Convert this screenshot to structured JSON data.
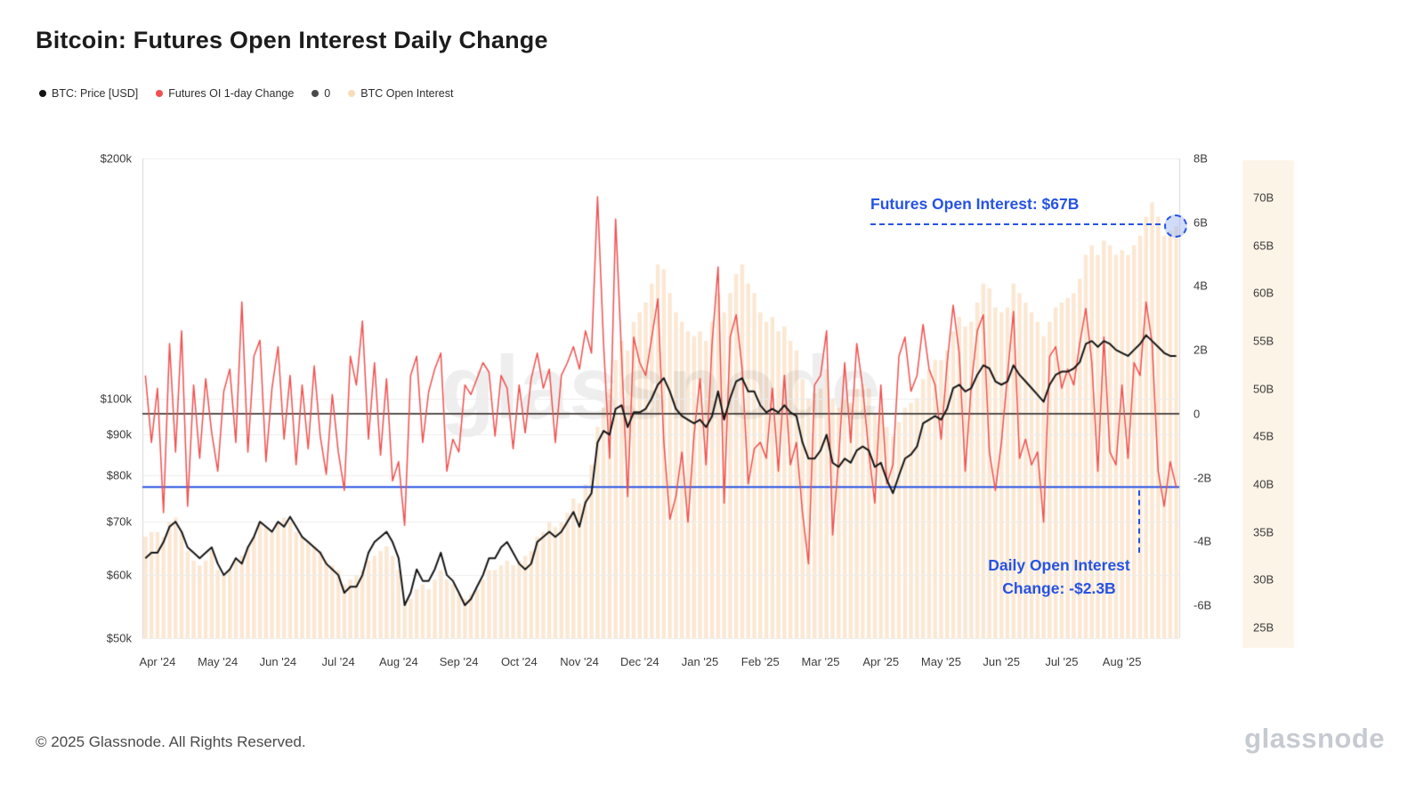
{
  "title": "Bitcoin: Futures Open Interest Daily Change",
  "watermark": "glassnode",
  "accent_blue": "#2653e4",
  "annotation_circle_fill": "rgba(135,162,242,0.38)",
  "legend": [
    {
      "label": "BTC: Price [USD]",
      "color": "#141414"
    },
    {
      "label": "Futures OI 1-day Change",
      "color": "#f0504f"
    },
    {
      "label": "0",
      "color": "#4a4a4a"
    },
    {
      "label": "BTC Open Interest",
      "color": "#f8ddb9"
    }
  ],
  "annotations": {
    "oi_callout": "Futures Open Interest: $67B",
    "change_callout_line1": "Daily Open Interest",
    "change_callout_line2": "Change: -$2.3B"
  },
  "footer": {
    "copyright": "© 2025 Glassnode. All Rights Reserved.",
    "brand": "glassnode"
  },
  "chart_data": {
    "type": "line",
    "title": "Bitcoin: Futures Open Interest Daily Change",
    "grid": "horizontal-light",
    "legend_position": "top-left",
    "x_ticks": {
      "labels": [
        "Apr '24",
        "May '24",
        "Jun '24",
        "Jul '24",
        "Aug '24",
        "Sep '24",
        "Oct '24",
        "Nov '24",
        "Dec '24",
        "Jan '25",
        "Feb '25",
        "Mar '25",
        "Apr '25",
        "May '25",
        "Jun '25",
        "Jul '25",
        "Aug '25"
      ],
      "indices": [
        2,
        12,
        22,
        32,
        42,
        52,
        62,
        72,
        82,
        92,
        102,
        112,
        122,
        132,
        142,
        152,
        162
      ]
    },
    "axes": {
      "price_usd": {
        "side": "left",
        "scale": "log",
        "range_k": [
          50,
          200
        ],
        "ticks": [
          "$200k",
          "$100k",
          "$90k",
          "$80k",
          "$70k",
          "$60k",
          "$50k"
        ],
        "tick_values_k": [
          200,
          100,
          90,
          80,
          70,
          60,
          50
        ]
      },
      "oi_change": {
        "side": "right-inner",
        "scale": "linear",
        "range_b": [
          -6.9,
          8
        ],
        "ticks": [
          "8B",
          "6B",
          "4B",
          "2B",
          "0",
          "-2B",
          "-4B",
          "-6B"
        ],
        "tick_values_b": [
          8,
          6,
          4,
          2,
          0,
          -2,
          -4,
          -6
        ]
      },
      "open_interest": {
        "side": "right-outer",
        "scale": "linear",
        "range_b": [
          23,
          72
        ],
        "ticks": [
          "70B",
          "65B",
          "60B",
          "55B",
          "50B",
          "45B",
          "40B",
          "35B",
          "30B",
          "25B"
        ],
        "tick_values_b": [
          70,
          65,
          60,
          55,
          50,
          45,
          40,
          35,
          30,
          25
        ]
      }
    },
    "reference_lines": {
      "zero": {
        "value_b": 0,
        "color": "#3f3b38"
      },
      "daily_change": {
        "value_b": -2.3,
        "color": "#2653e4"
      }
    },
    "latest": {
      "open_interest_b": 67,
      "daily_change_b": -2.3
    },
    "series": [
      {
        "name": "BTC: Price [USD]",
        "axis": "price_usd",
        "style": "line",
        "color": "#151515",
        "unit": "thousand USD",
        "values": [
          63,
          64,
          64,
          66,
          69,
          70,
          68,
          65,
          64,
          63,
          64,
          65,
          62,
          60,
          61,
          63,
          62,
          65,
          67,
          70,
          69,
          68,
          70,
          69,
          71,
          69,
          67,
          66,
          65,
          64,
          62,
          61,
          60,
          57,
          58,
          58,
          60,
          64,
          66,
          67,
          68,
          66,
          63,
          55,
          57,
          61,
          59,
          59,
          61,
          64,
          60,
          59,
          57,
          55,
          56,
          58,
          60,
          63,
          63,
          65,
          66,
          64,
          62,
          61,
          62,
          66,
          67,
          68,
          67,
          68,
          70,
          72,
          69,
          74,
          76,
          88,
          91,
          90,
          97,
          98,
          92,
          96,
          96,
          97,
          100,
          104,
          106,
          102,
          97,
          95,
          94,
          93,
          94,
          92,
          95,
          102,
          94,
          100,
          105,
          106,
          102,
          102,
          98,
          96,
          97,
          96,
          98,
          96,
          95,
          88,
          84,
          84,
          86,
          90,
          83,
          82,
          84,
          83,
          86,
          87,
          86,
          82,
          83,
          79,
          76,
          80,
          84,
          85,
          87,
          93,
          94,
          95,
          94,
          97,
          103,
          104,
          102,
          103,
          107,
          110,
          109,
          105,
          104,
          105,
          110,
          107,
          105,
          103,
          101,
          99,
          104,
          107,
          108,
          108,
          109,
          111,
          117,
          118,
          116,
          118,
          117,
          115,
          114,
          113,
          115,
          117,
          120,
          118,
          116,
          114,
          113,
          113
        ]
      },
      {
        "name": "Futures OI 1-day Change",
        "axis": "oi_change",
        "style": "line",
        "color": "#f0504f",
        "unit": "billion USD",
        "values": [
          1.2,
          -0.9,
          0.8,
          -3.1,
          2.2,
          -1.2,
          2.6,
          -2.9,
          0.9,
          -1.4,
          1.1,
          -0.6,
          -1.8,
          0.7,
          1.4,
          -0.9,
          3.5,
          -1.2,
          1.8,
          2.3,
          -1.5,
          0.8,
          2.1,
          -0.8,
          1.2,
          -1.6,
          0.9,
          -1.1,
          1.5,
          -0.7,
          -1.9,
          0.6,
          -1.2,
          -2.4,
          1.8,
          0.9,
          2.9,
          -0.8,
          1.6,
          -1.3,
          1.1,
          -2.1,
          -1.5,
          -3.5,
          1.2,
          1.8,
          -0.9,
          0.7,
          1.4,
          1.9,
          -1.8,
          -0.8,
          -1.2,
          0.9,
          0.6,
          1.1,
          1.6,
          1.3,
          -0.7,
          1.2,
          0.8,
          -1.1,
          0.9,
          -0.6,
          1.1,
          1.9,
          0.8,
          1.4,
          -0.9,
          1.2,
          1.6,
          2.1,
          1.4,
          2.6,
          1.9,
          6.8,
          2.2,
          -1.4,
          6.1,
          1.8,
          -2.6,
          2.4,
          1.6,
          1.2,
          2.4,
          3.6,
          -0.9,
          -3.3,
          -2.6,
          -1.2,
          -3.4,
          -0.7,
          1.1,
          -1.6,
          2.2,
          4.6,
          -2.8,
          2.4,
          3.1,
          1.4,
          -2.2,
          -1.1,
          -0.9,
          -1.4,
          0.8,
          -1.8,
          1.2,
          -1.6,
          -0.9,
          -3.1,
          -4.7,
          0.9,
          1.2,
          2.6,
          -3.8,
          -1.4,
          1.6,
          -0.9,
          2.2,
          0.8,
          -1.2,
          -2.8,
          0.9,
          -2.2,
          -1.6,
          1.8,
          2.4,
          0.7,
          1.2,
          2.8,
          1.4,
          0.9,
          -0.8,
          1.6,
          3.4,
          1.9,
          -1.8,
          0.9,
          2.6,
          3.1,
          -1.2,
          -2.4,
          -0.9,
          1.2,
          3.2,
          -1.4,
          -0.8,
          -1.6,
          -1.2,
          -3.4,
          1.8,
          2.1,
          0.8,
          1.4,
          0.9,
          2.2,
          3.3,
          1.6,
          -1.8,
          2.4,
          -1.2,
          -1.6,
          0.9,
          -1.4,
          1.6,
          1.2,
          3.5,
          2.2,
          -1.8,
          -2.9,
          -1.5,
          -2.3
        ]
      },
      {
        "name": "BTC Open Interest",
        "axis": "open_interest",
        "style": "area-bars",
        "color": "rgba(243,176,106,0.30)",
        "unit": "billion USD",
        "values": [
          34.5,
          35,
          35,
          34.5,
          36,
          36.5,
          35,
          33,
          32,
          31.5,
          32,
          33,
          31,
          30.5,
          31,
          32,
          32.5,
          33.5,
          34.5,
          36,
          35.5,
          35,
          36,
          36.5,
          36,
          35,
          34.5,
          34,
          33.5,
          33,
          32,
          31.5,
          31,
          29.5,
          30,
          30.5,
          31,
          32,
          32.5,
          33,
          33.5,
          32.5,
          31,
          27.5,
          28,
          29,
          29.5,
          29,
          30,
          31,
          30,
          29.5,
          28.5,
          28,
          28.5,
          29,
          30,
          31,
          31,
          31.5,
          32,
          31.5,
          32,
          32.5,
          33,
          34.5,
          35,
          36,
          35.5,
          36,
          37,
          38.5,
          38,
          40,
          42,
          46,
          48,
          50,
          53,
          55,
          54,
          57,
          58,
          59,
          61,
          63,
          62.5,
          60,
          58,
          57,
          56,
          55.5,
          56,
          55,
          57,
          60,
          58,
          60,
          62,
          63,
          61,
          60,
          58,
          57,
          57.5,
          56,
          56.5,
          55,
          54,
          51,
          49,
          49.5,
          50,
          52,
          49,
          48,
          49,
          48.5,
          50,
          50.5,
          50,
          47.5,
          48,
          46,
          45,
          46.5,
          48,
          48.5,
          49,
          51,
          52,
          53,
          53,
          54,
          56,
          57.5,
          56.5,
          57,
          59,
          61,
          60.5,
          58.5,
          58,
          58.5,
          61,
          60,
          59,
          58,
          57,
          55.5,
          57,
          58.5,
          59,
          59.5,
          60,
          61.5,
          64,
          65,
          64,
          65.5,
          65,
          64,
          64.5,
          64,
          65,
          66,
          68,
          69.5,
          68,
          66,
          66.5,
          67
        ]
      }
    ]
  }
}
